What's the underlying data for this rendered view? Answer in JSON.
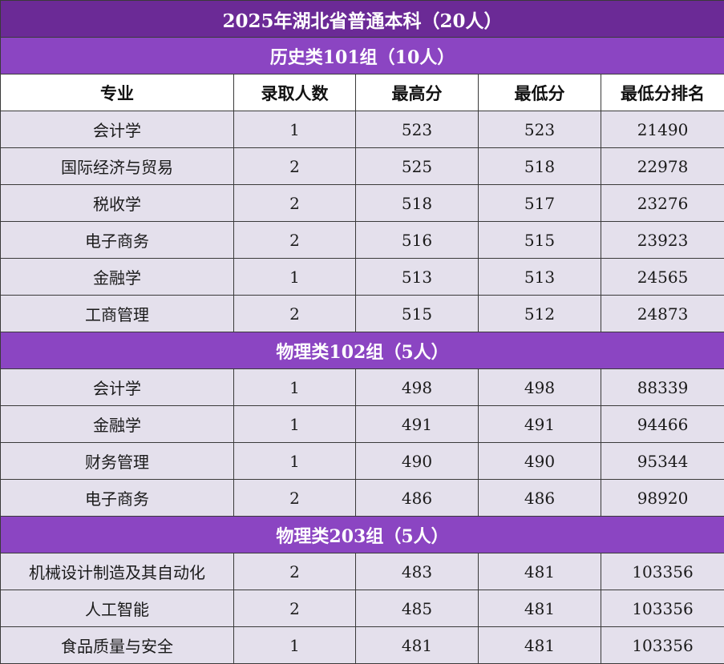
{
  "title": "2025年湖北省普通本科（20人）",
  "headers": [
    "专业",
    "录取人数",
    "最高分",
    "最低分",
    "最低分排名"
  ],
  "groups": [
    {
      "name": "历史类101组（10人）",
      "rows": [
        [
          "会计学",
          "1",
          "523",
          "523",
          "21490"
        ],
        [
          "国际经济与贸易",
          "2",
          "525",
          "518",
          "22978"
        ],
        [
          "税收学",
          "2",
          "518",
          "517",
          "23276"
        ],
        [
          "电子商务",
          "2",
          "516",
          "515",
          "23923"
        ],
        [
          "金融学",
          "1",
          "513",
          "513",
          "24565"
        ],
        [
          "工商管理",
          "2",
          "515",
          "512",
          "24873"
        ]
      ]
    },
    {
      "name": "物理类102组（5人）",
      "rows": [
        [
          "会计学",
          "1",
          "498",
          "498",
          "88339"
        ],
        [
          "金融学",
          "1",
          "491",
          "491",
          "94466"
        ],
        [
          "财务管理",
          "1",
          "490",
          "490",
          "95344"
        ],
        [
          "电子商务",
          "2",
          "486",
          "486",
          "98920"
        ]
      ]
    },
    {
      "name": "物理类203组（5人）",
      "rows": [
        [
          "机械设计制造及其自动化",
          "2",
          "483",
          "481",
          "103356"
        ],
        [
          "人工智能",
          "2",
          "485",
          "481",
          "103356"
        ],
        [
          "食品质量与安全",
          "1",
          "481",
          "481",
          "103356"
        ]
      ]
    }
  ],
  "colors": {
    "title_bg": "#6b2a96",
    "group_bg": "#8b45c2",
    "row_bg": "#e4e0ec",
    "header_bg": "#ffffff"
  }
}
